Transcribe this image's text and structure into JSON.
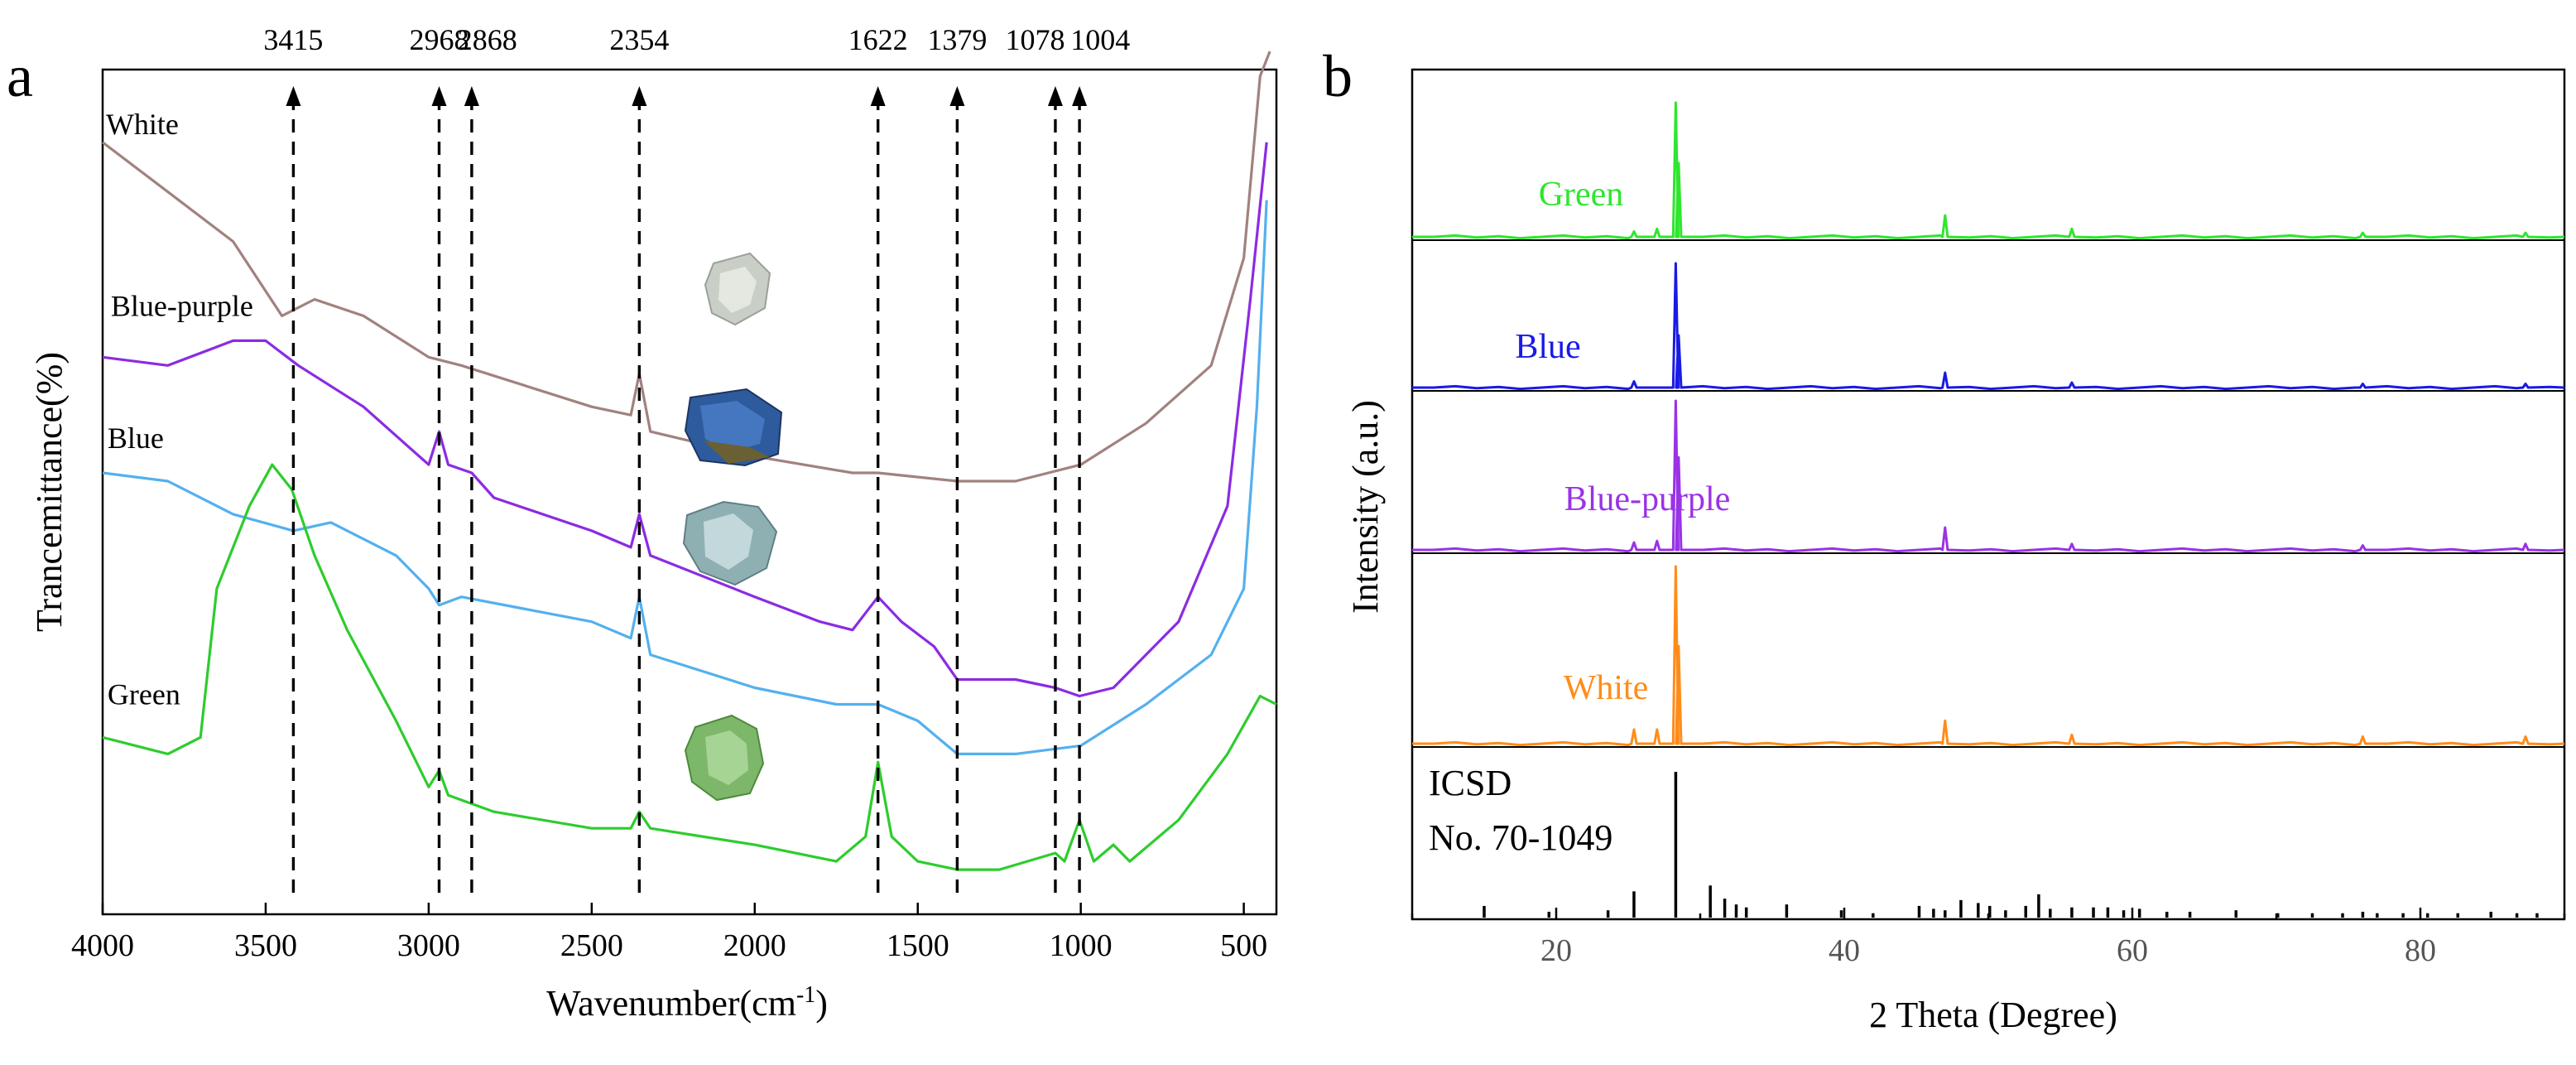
{
  "chart_data": [
    {
      "panel_label": "a",
      "type": "line",
      "title": "",
      "xlabel": "Wavenumber(cm",
      "xlabel_sup": "-1",
      "xlabel_suffix": ")",
      "ylabel": "Trancemittance(%)",
      "xlim": [
        4000,
        400
      ],
      "x_reversed": true,
      "ylim": [
        0,
        100
      ],
      "yticks_shown": false,
      "xticks": [
        4000,
        3500,
        3000,
        2500,
        2000,
        1500,
        1000,
        500
      ],
      "xtick_labels": [
        "4000",
        "3500",
        "3000",
        "2500",
        "2000",
        "1500",
        "1000",
        "500"
      ],
      "markers": [
        {
          "label": "3415",
          "x": 3415,
          "label_x": 3415
        },
        {
          "label": "2968",
          "x": 2968,
          "label_x": 2968
        },
        {
          "label": "2868",
          "x": 2868,
          "label_x": 2820
        },
        {
          "label": "2354",
          "x": 2354,
          "label_x": 2354
        },
        {
          "label": "1622",
          "x": 1622,
          "label_x": 1622
        },
        {
          "label": "1379",
          "x": 1379,
          "label_x": 1379
        },
        {
          "label": "1078",
          "x": 1078,
          "label_x": 1140
        },
        {
          "label": "1004",
          "x": 1004,
          "label_x": 940
        }
      ],
      "series": [
        {
          "name": "White",
          "color": "#a1827e",
          "label_x": 3990,
          "label_y": 93,
          "points": [
            [
              4000,
              92
            ],
            [
              3800,
              86
            ],
            [
              3600,
              80
            ],
            [
              3450,
              71
            ],
            [
              3350,
              73
            ],
            [
              3200,
              71
            ],
            [
              3000,
              66
            ],
            [
              2900,
              65
            ],
            [
              2500,
              60
            ],
            [
              2380,
              59
            ],
            [
              2354,
              64
            ],
            [
              2320,
              57
            ],
            [
              2000,
              54
            ],
            [
              1700,
              52
            ],
            [
              1622,
              52
            ],
            [
              1379,
              51
            ],
            [
              1200,
              51
            ],
            [
              1000,
              53
            ],
            [
              800,
              58
            ],
            [
              600,
              65
            ],
            [
              500,
              78
            ],
            [
              450,
              100
            ],
            [
              420,
              103
            ]
          ]
        },
        {
          "name": "Blue-purple",
          "color": "#8c2be2",
          "label_x": 3975,
          "label_y": 71,
          "points": [
            [
              4000,
              66
            ],
            [
              3800,
              65
            ],
            [
              3600,
              68
            ],
            [
              3500,
              68
            ],
            [
              3400,
              65
            ],
            [
              3200,
              60
            ],
            [
              3000,
              53
            ],
            [
              2968,
              57
            ],
            [
              2940,
              53
            ],
            [
              2868,
              52
            ],
            [
              2800,
              49
            ],
            [
              2500,
              45
            ],
            [
              2380,
              43
            ],
            [
              2354,
              47
            ],
            [
              2320,
              42
            ],
            [
              2000,
              37
            ],
            [
              1800,
              34
            ],
            [
              1700,
              33
            ],
            [
              1622,
              37
            ],
            [
              1550,
              34
            ],
            [
              1450,
              31
            ],
            [
              1379,
              27
            ],
            [
              1200,
              27
            ],
            [
              1078,
              26
            ],
            [
              1004,
              25
            ],
            [
              900,
              26
            ],
            [
              700,
              34
            ],
            [
              550,
              48
            ],
            [
              480,
              73
            ],
            [
              430,
              92
            ]
          ]
        },
        {
          "name": "Blue",
          "color": "#54b0ee",
          "label_x": 3985,
          "label_y": 55,
          "points": [
            [
              4000,
              52
            ],
            [
              3800,
              51
            ],
            [
              3600,
              47
            ],
            [
              3415,
              45
            ],
            [
              3300,
              46
            ],
            [
              3100,
              42
            ],
            [
              3000,
              38
            ],
            [
              2968,
              36
            ],
            [
              2900,
              37
            ],
            [
              2500,
              34
            ],
            [
              2380,
              32
            ],
            [
              2354,
              37
            ],
            [
              2320,
              30
            ],
            [
              2000,
              26
            ],
            [
              1750,
              24
            ],
            [
              1622,
              24
            ],
            [
              1500,
              22
            ],
            [
              1379,
              18
            ],
            [
              1200,
              18
            ],
            [
              1000,
              19
            ],
            [
              800,
              24
            ],
            [
              600,
              30
            ],
            [
              500,
              38
            ],
            [
              460,
              60
            ],
            [
              430,
              85
            ]
          ]
        },
        {
          "name": "Green",
          "color": "#2ecc2e",
          "label_x": 3985,
          "label_y": 24,
          "points": [
            [
              4000,
              20
            ],
            [
              3800,
              18
            ],
            [
              3700,
              20
            ],
            [
              3650,
              38
            ],
            [
              3550,
              48
            ],
            [
              3480,
              53
            ],
            [
              3420,
              50
            ],
            [
              3350,
              42
            ],
            [
              3250,
              33
            ],
            [
              3100,
              22
            ],
            [
              3000,
              14
            ],
            [
              2968,
              16
            ],
            [
              2940,
              13
            ],
            [
              2800,
              11
            ],
            [
              2500,
              9
            ],
            [
              2380,
              9
            ],
            [
              2354,
              11
            ],
            [
              2320,
              9
            ],
            [
              2000,
              7
            ],
            [
              1750,
              5
            ],
            [
              1660,
              8
            ],
            [
              1622,
              17
            ],
            [
              1580,
              8
            ],
            [
              1500,
              5
            ],
            [
              1379,
              4
            ],
            [
              1250,
              4
            ],
            [
              1078,
              6
            ],
            [
              1050,
              5
            ],
            [
              1004,
              10
            ],
            [
              960,
              5
            ],
            [
              900,
              7
            ],
            [
              850,
              5
            ],
            [
              700,
              10
            ],
            [
              550,
              18
            ],
            [
              450,
              25
            ],
            [
              400,
              24
            ]
          ]
        }
      ]
    },
    {
      "panel_label": "b",
      "type": "line",
      "title": "",
      "xlabel": "2 Theta (Degree)",
      "ylabel": "Intensity (a.u.)",
      "xlim": [
        10,
        90
      ],
      "xticks": [
        20,
        40,
        60,
        80
      ],
      "xtick_labels": [
        "20",
        "40",
        "60",
        "80"
      ],
      "yticks_shown": false,
      "major_peaks_2theta": [
        27.0,
        28.3,
        47.0,
        55.8,
        76.0,
        87.3
      ],
      "series": [
        {
          "name": "Green",
          "color": "#2ee62e",
          "peaks": [
            [
              25.4,
              0.04
            ],
            [
              27.0,
              0.06
            ],
            [
              28.3,
              1.0
            ],
            [
              28.5,
              0.55
            ],
            [
              47.0,
              0.16
            ],
            [
              55.8,
              0.06
            ],
            [
              76.0,
              0.03
            ],
            [
              87.3,
              0.03
            ]
          ]
        },
        {
          "name": "Blue",
          "color": "#1a1ae6",
          "peaks": [
            [
              25.4,
              0.05
            ],
            [
              28.3,
              1.0
            ],
            [
              28.5,
              0.42
            ],
            [
              47.0,
              0.12
            ],
            [
              55.8,
              0.04
            ],
            [
              76.0,
              0.03
            ],
            [
              87.3,
              0.03
            ]
          ]
        },
        {
          "name": "Blue-purple",
          "color": "#9a32e6",
          "peaks": [
            [
              25.4,
              0.05
            ],
            [
              27.0,
              0.06
            ],
            [
              28.3,
              1.0
            ],
            [
              28.5,
              0.62
            ],
            [
              47.0,
              0.15
            ],
            [
              55.8,
              0.04
            ],
            [
              76.0,
              0.03
            ],
            [
              87.3,
              0.04
            ]
          ]
        },
        {
          "name": "White",
          "color": "#ff8c1a",
          "peaks": [
            [
              25.4,
              0.08
            ],
            [
              27.0,
              0.08
            ],
            [
              28.3,
              1.0
            ],
            [
              28.5,
              0.55
            ],
            [
              47.0,
              0.13
            ],
            [
              55.8,
              0.05
            ],
            [
              76.0,
              0.04
            ],
            [
              87.3,
              0.04
            ]
          ]
        }
      ],
      "reference": {
        "name_line1": "ICSD",
        "name_line2": "No. 70-1049",
        "color": "#000000",
        "sticks": [
          [
            15.0,
            0.08
          ],
          [
            19.5,
            0.04
          ],
          [
            23.6,
            0.05
          ],
          [
            25.4,
            0.18
          ],
          [
            28.3,
            1.0
          ],
          [
            30.7,
            0.22
          ],
          [
            31.7,
            0.13
          ],
          [
            32.5,
            0.09
          ],
          [
            33.2,
            0.07
          ],
          [
            36.0,
            0.09
          ],
          [
            39.8,
            0.05
          ],
          [
            42.0,
            0.03
          ],
          [
            45.2,
            0.08
          ],
          [
            46.2,
            0.06
          ],
          [
            47.0,
            0.05
          ],
          [
            48.1,
            0.12
          ],
          [
            49.3,
            0.1
          ],
          [
            50.1,
            0.08
          ],
          [
            51.2,
            0.05
          ],
          [
            52.6,
            0.08
          ],
          [
            53.5,
            0.16
          ],
          [
            54.3,
            0.06
          ],
          [
            55.8,
            0.07
          ],
          [
            57.3,
            0.07
          ],
          [
            58.3,
            0.07
          ],
          [
            59.4,
            0.05
          ],
          [
            60.5,
            0.06
          ],
          [
            62.4,
            0.04
          ],
          [
            64.0,
            0.04
          ],
          [
            67.2,
            0.05
          ],
          [
            70.1,
            0.03
          ],
          [
            72.5,
            0.03
          ],
          [
            74.6,
            0.03
          ],
          [
            76.0,
            0.04
          ],
          [
            77.0,
            0.03
          ],
          [
            78.8,
            0.03
          ],
          [
            80.5,
            0.03
          ],
          [
            82.6,
            0.03
          ],
          [
            84.9,
            0.04
          ],
          [
            86.7,
            0.03
          ],
          [
            88.1,
            0.03
          ]
        ]
      }
    }
  ]
}
